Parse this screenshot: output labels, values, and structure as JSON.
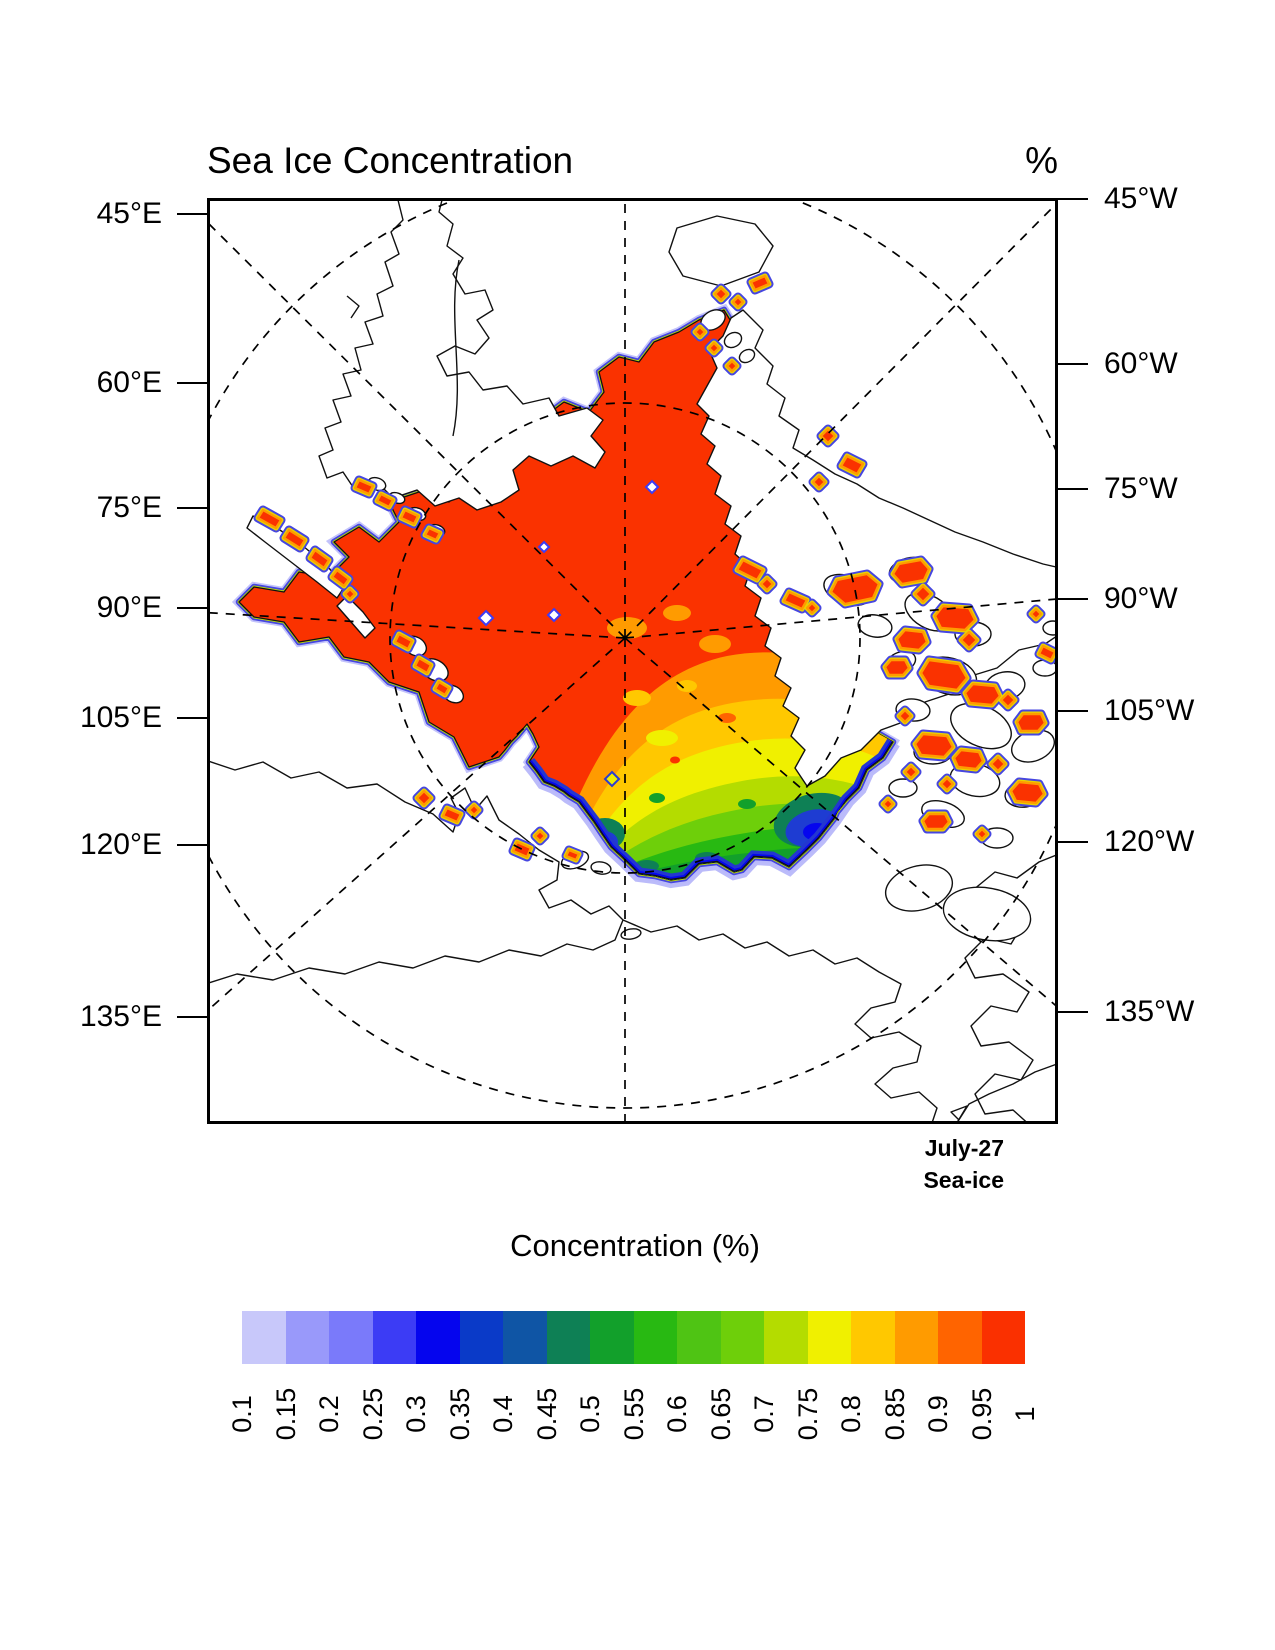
{
  "header": {
    "title": "Sea Ice Concentration",
    "units": "%"
  },
  "axes": {
    "left": {
      "labels": [
        "45°E",
        "60°E",
        "75°E",
        "90°E",
        "105°E",
        "120°E",
        "135°E"
      ]
    },
    "right": {
      "labels": [
        "45°W",
        "60°W",
        "75°W",
        "90°W",
        "105°W",
        "120°W",
        "135°W"
      ]
    }
  },
  "annotation": {
    "date": "July-27",
    "field": "Sea-ice"
  },
  "colorbar": {
    "title": "Concentration (%)",
    "tick_labels": [
      "0.1",
      "0.15",
      "0.2",
      "0.25",
      "0.3",
      "0.35",
      "0.4",
      "0.45",
      "0.5",
      "0.55",
      "0.6",
      "0.65",
      "0.7",
      "0.75",
      "0.8",
      "0.85",
      "0.9",
      "0.95",
      "1"
    ],
    "colors": [
      "#c8c8fa",
      "#9999fa",
      "#7a7afa",
      "#3c3cf5",
      "#0505ee",
      "#0a3ac8",
      "#0f55a5",
      "#0e8055",
      "#12a02b",
      "#28b912",
      "#4fc414",
      "#6ecf0a",
      "#b4dc00",
      "#f0f000",
      "#ffc800",
      "#ff9b00",
      "#ff6400",
      "#fa3000"
    ]
  },
  "chart_data": {
    "type": "filled_contour_map",
    "title": "Sea Ice Concentration",
    "units": "%",
    "projection": "north polar stereographic, 0°E at top, Arctic Ocean centered",
    "date": "July-27",
    "variable": "Sea-ice",
    "levels": [
      0.1,
      0.15,
      0.2,
      0.25,
      0.3,
      0.35,
      0.4,
      0.45,
      0.5,
      0.55,
      0.6,
      0.65,
      0.7,
      0.75,
      0.8,
      0.85,
      0.9,
      0.95,
      1
    ],
    "level_colors": [
      "#c8c8fa",
      "#9999fa",
      "#7a7afa",
      "#3c3cf5",
      "#0505ee",
      "#0a3ac8",
      "#0f55a5",
      "#0e8055",
      "#12a02b",
      "#28b912",
      "#4fc414",
      "#6ecf0a",
      "#b4dc00",
      "#f0f000",
      "#ffc800",
      "#ff9b00",
      "#ff6400",
      "#fa3000"
    ],
    "longitude_ticks_left": [
      "45°E",
      "60°E",
      "75°E",
      "90°E",
      "105°E",
      "120°E",
      "135°E"
    ],
    "longitude_ticks_right": [
      "45°W",
      "60°W",
      "75°W",
      "90°W",
      "105°W",
      "120°W",
      "135°W"
    ],
    "graticule": {
      "meridians_every_deg": 45,
      "latitude_circles_deg": [
        80,
        70,
        60
      ],
      "style": "dashed black"
    },
    "features": [
      "compact pack ice (>0.95, red) covering the central Arctic Ocean from Fram Strait / Svalbard across the pole toward the Canadian Arctic Archipelago",
      "marginal ice zone on the Pacific side (Beaufort / Chukchi / East Siberian seas): concentration decreases southward through orange (~0.85), yellow (~0.75), yellow-green (~0.65), green (~0.55) to blue (~0.2-0.35) at the ice edge",
      "two low-concentration blue pockets (~0.25-0.35) embedded near the southern ice edge",
      "scattered small high-concentration patches (red, rimmed orange/yellow with blue fringe) in the Canadian Arctic Archipelago channels, Baffin Bay, along NE Greenland, Svalbard, Franz Josef Land, Novaya Zemlya, Severnaya Zemlya and the Laptev coast",
      "thin black coastlines on white land/ocean background; ice edge fringed yellow-green then blue (0.1-0.15 bands)"
    ]
  }
}
